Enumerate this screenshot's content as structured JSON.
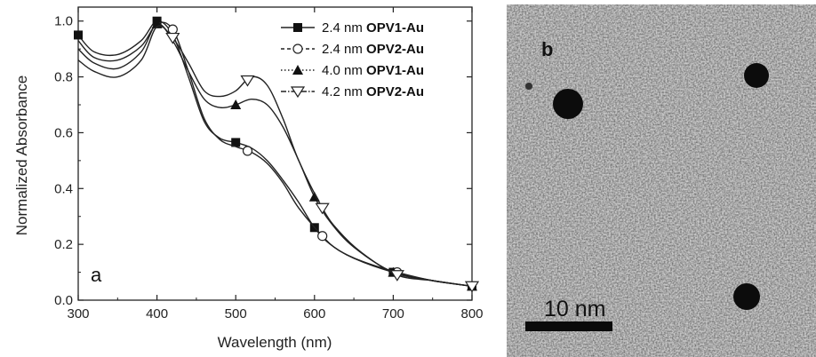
{
  "chart_data": {
    "type": "line",
    "panel_label": "a",
    "xlabel": "Wavelength (nm)",
    "ylabel": "Normalized Absorbance",
    "xlim": [
      300,
      800
    ],
    "ylim": [
      0.0,
      1.05
    ],
    "xticks": [
      300,
      400,
      500,
      600,
      700,
      800
    ],
    "yticks": [
      0.0,
      0.2,
      0.4,
      0.6,
      0.8,
      1.0
    ],
    "ytick_labels": [
      "0.0",
      "0.2",
      "0.4",
      "0.6",
      "0.8",
      "1.0"
    ],
    "grid": false,
    "legend_position": "top-right",
    "series": [
      {
        "name_prefix": "2.4 nm",
        "name_bold": "OPV1-Au",
        "marker": "filled-square",
        "dash": "solid",
        "points": [
          [
            300,
            0.95
          ],
          [
            320,
            0.89
          ],
          [
            350,
            0.88
          ],
          [
            380,
            0.93
          ],
          [
            400,
            1.0
          ],
          [
            420,
            0.95
          ],
          [
            440,
            0.8
          ],
          [
            460,
            0.64
          ],
          [
            480,
            0.58
          ],
          [
            500,
            0.565
          ],
          [
            520,
            0.545
          ],
          [
            540,
            0.5
          ],
          [
            560,
            0.43
          ],
          [
            580,
            0.35
          ],
          [
            600,
            0.26
          ],
          [
            620,
            0.2
          ],
          [
            650,
            0.15
          ],
          [
            700,
            0.1
          ],
          [
            750,
            0.07
          ],
          [
            800,
            0.05
          ]
        ],
        "marker_x": [
          300,
          400,
          500,
          600,
          700,
          800
        ]
      },
      {
        "name_prefix": "2.4 nm",
        "name_bold": "OPV2-Au",
        "marker": "open-circle",
        "dash": "dash",
        "points": [
          [
            300,
            0.93
          ],
          [
            320,
            0.87
          ],
          [
            350,
            0.86
          ],
          [
            380,
            0.91
          ],
          [
            400,
            0.99
          ],
          [
            420,
            0.97
          ],
          [
            440,
            0.82
          ],
          [
            460,
            0.65
          ],
          [
            480,
            0.575
          ],
          [
            500,
            0.55
          ],
          [
            520,
            0.53
          ],
          [
            540,
            0.49
          ],
          [
            560,
            0.42
          ],
          [
            580,
            0.33
          ],
          [
            610,
            0.23
          ],
          [
            630,
            0.18
          ],
          [
            660,
            0.14
          ],
          [
            705,
            0.1
          ],
          [
            750,
            0.07
          ],
          [
            800,
            0.05
          ]
        ],
        "marker_x": [
          420,
          515,
          610,
          705
        ]
      },
      {
        "name_prefix": "4.0 nm",
        "name_bold": "OPV1-Au",
        "marker": "filled-triangle-up",
        "dash": "dot",
        "points": [
          [
            300,
            0.9
          ],
          [
            320,
            0.85
          ],
          [
            350,
            0.83
          ],
          [
            380,
            0.89
          ],
          [
            400,
            0.99
          ],
          [
            420,
            0.93
          ],
          [
            440,
            0.82
          ],
          [
            460,
            0.72
          ],
          [
            480,
            0.69
          ],
          [
            500,
            0.7
          ],
          [
            520,
            0.72
          ],
          [
            540,
            0.7
          ],
          [
            560,
            0.62
          ],
          [
            580,
            0.5
          ],
          [
            600,
            0.37
          ],
          [
            620,
            0.28
          ],
          [
            650,
            0.19
          ],
          [
            700,
            0.1
          ],
          [
            750,
            0.07
          ],
          [
            800,
            0.05
          ]
        ],
        "marker_x": [
          400,
          500,
          600,
          700,
          800
        ]
      },
      {
        "name_prefix": "4.2 nm",
        "name_bold": "OPV2-Au",
        "marker": "open-triangle-down",
        "dash": "dash-dot",
        "points": [
          [
            300,
            0.86
          ],
          [
            320,
            0.82
          ],
          [
            350,
            0.8
          ],
          [
            380,
            0.86
          ],
          [
            400,
            0.98
          ],
          [
            420,
            0.94
          ],
          [
            440,
            0.85
          ],
          [
            460,
            0.75
          ],
          [
            480,
            0.73
          ],
          [
            500,
            0.75
          ],
          [
            520,
            0.8
          ],
          [
            540,
            0.77
          ],
          [
            560,
            0.65
          ],
          [
            580,
            0.5
          ],
          [
            610,
            0.33
          ],
          [
            630,
            0.25
          ],
          [
            660,
            0.17
          ],
          [
            705,
            0.09
          ],
          [
            750,
            0.07
          ],
          [
            800,
            0.05
          ]
        ],
        "marker_x": [
          420,
          515,
          610,
          705,
          800
        ]
      }
    ]
  },
  "image_panel": {
    "panel_label": "b",
    "scale_bar_label": "10 nm",
    "background_color": "#c4c4c4",
    "particle_color": "#0c0c0c"
  }
}
